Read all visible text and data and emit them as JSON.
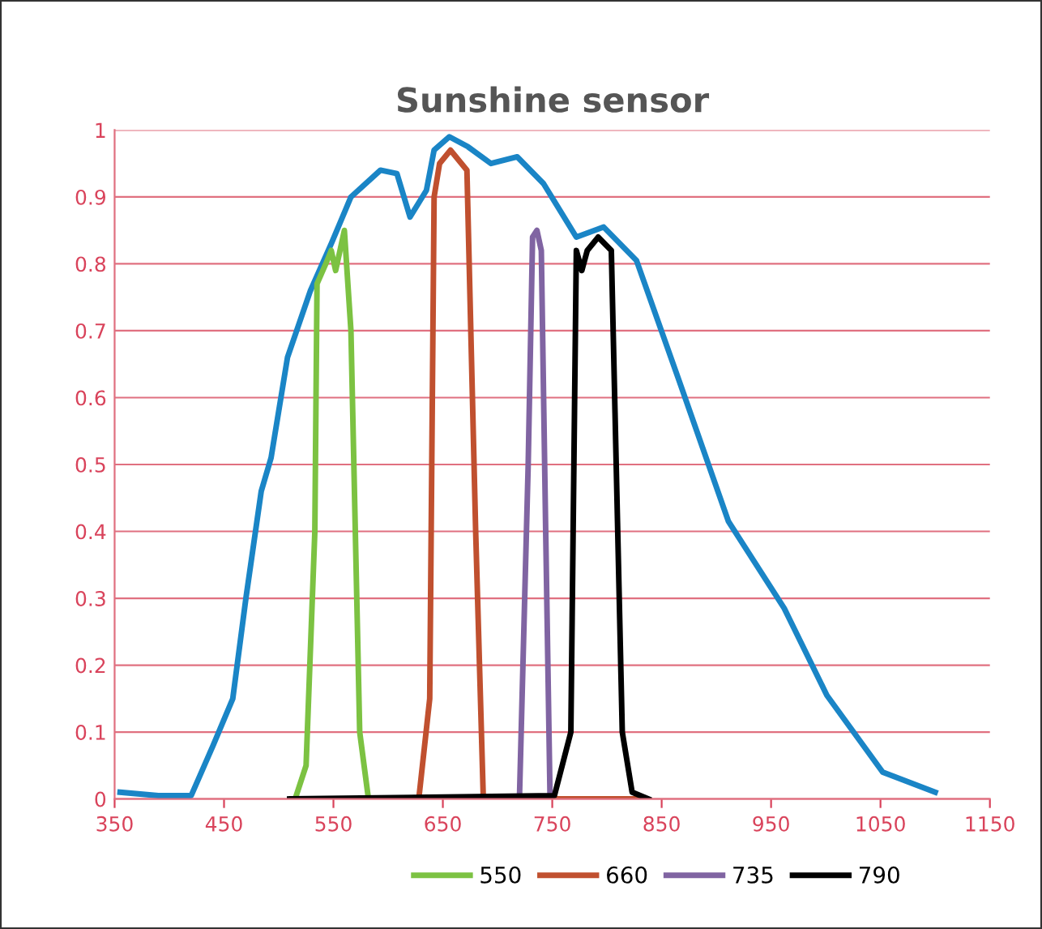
{
  "chart_data": {
    "type": "line",
    "title": "Sunshine sensor",
    "xlim": [
      350,
      1150
    ],
    "xticks": [
      350,
      450,
      550,
      650,
      750,
      850,
      950,
      1050,
      1150
    ],
    "ylim": [
      0,
      1
    ],
    "yticks": [
      0,
      0.1,
      0.2,
      0.3,
      0.4,
      0.5,
      0.6,
      0.7,
      0.8,
      0.9,
      1
    ],
    "grid": "y",
    "legend": "bottom",
    "marker": "none",
    "line_style": "solid",
    "series": [
      {
        "color": "#1a85c6",
        "x": [
          355,
          390,
          420,
          440,
          458,
          470,
          484,
          493,
          508,
          529,
          548,
          566,
          593,
          608,
          620,
          635,
          642,
          656,
          673,
          694,
          718,
          742,
          772,
          797,
          827,
          866,
          911,
          962,
          1001,
          1052,
          1100
        ],
        "values": [
          0.01,
          0.005,
          0.005,
          0.08,
          0.15,
          0.3,
          0.46,
          0.51,
          0.66,
          0.76,
          0.83,
          0.9,
          0.94,
          0.935,
          0.87,
          0.91,
          0.97,
          0.99,
          0.975,
          0.95,
          0.96,
          0.92,
          0.84,
          0.855,
          0.805,
          0.625,
          0.415,
          0.285,
          0.155,
          0.04,
          0.01
        ]
      },
      {
        "name": "550",
        "color": "#7cc242",
        "x": [
          515,
          525,
          533,
          535,
          543,
          548,
          552,
          556,
          560,
          566,
          574,
          582
        ],
        "values": [
          0,
          0.05,
          0.4,
          0.77,
          0.8,
          0.82,
          0.79,
          0.82,
          0.85,
          0.7,
          0.1,
          0
        ]
      },
      {
        "name": "660",
        "color": "#c0502f",
        "x": [
          628,
          638,
          642,
          647,
          657,
          672,
          680,
          687,
          835
        ],
        "values": [
          0,
          0.15,
          0.9,
          0.95,
          0.97,
          0.94,
          0.4,
          0,
          0
        ]
      },
      {
        "name": "735",
        "color": "#8064a2",
        "x": [
          720,
          728,
          732,
          736,
          740,
          744,
          748
        ],
        "values": [
          0,
          0.5,
          0.84,
          0.85,
          0.82,
          0.4,
          0
        ]
      },
      {
        "name": "790",
        "color": "#000000",
        "x": [
          510,
          752,
          767,
          772,
          777,
          782,
          792,
          804,
          814,
          823,
          838
        ],
        "values": [
          0,
          0.005,
          0.1,
          0.82,
          0.79,
          0.82,
          0.84,
          0.82,
          0.1,
          0.01,
          0
        ]
      }
    ]
  }
}
